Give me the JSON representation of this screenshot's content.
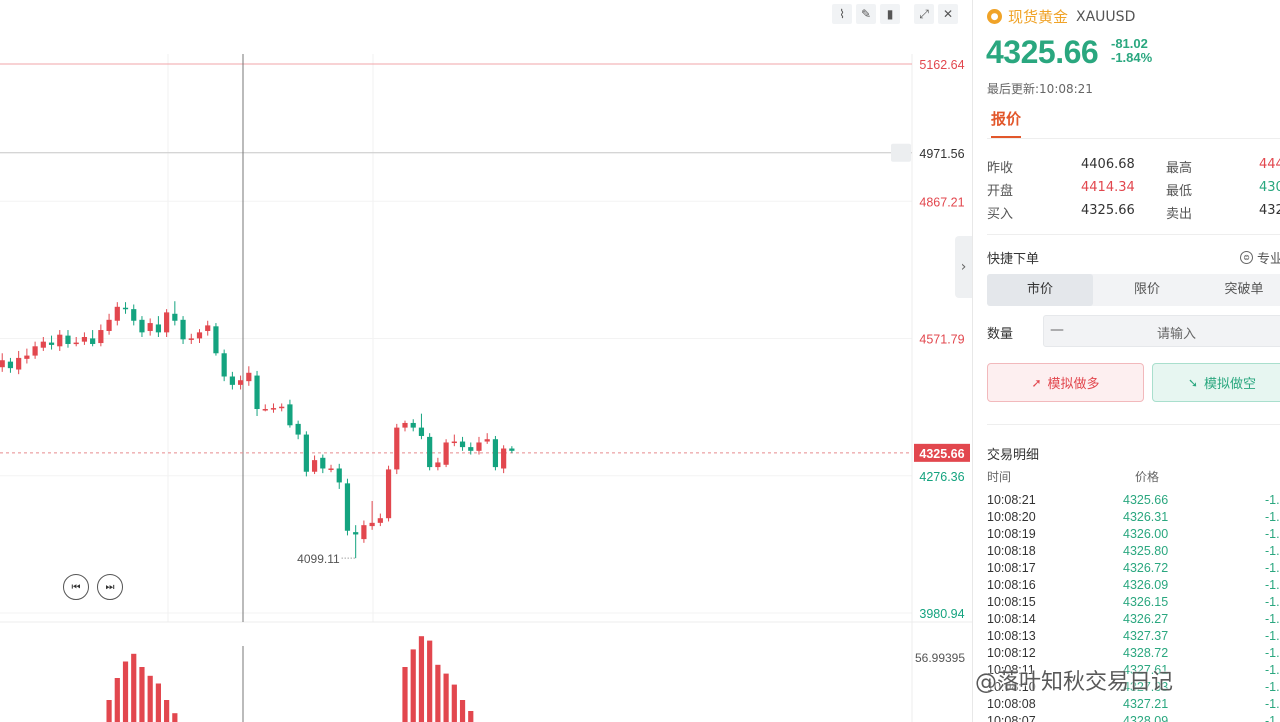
{
  "symbol": {
    "icon": "gold-coin-icon",
    "name_cn": "现货黄金",
    "code": "XAUUSD",
    "price": "4325.66",
    "change": "-81.02",
    "change_pct": "-1.84%",
    "last_update": "最后更新:10:08:21"
  },
  "tabs": {
    "quote": "报价"
  },
  "quote": {
    "left": [
      {
        "label": "昨收",
        "value": "4406.68",
        "color": "dark"
      },
      {
        "label": "开盘",
        "value": "4414.34",
        "color": "red"
      },
      {
        "label": "买入",
        "value": "4325.66",
        "color": "dark"
      }
    ],
    "right": [
      {
        "label": "最高",
        "value": "444",
        "color": "red"
      },
      {
        "label": "最低",
        "value": "430",
        "color": "green"
      },
      {
        "label": "卖出",
        "value": "432",
        "color": "dark"
      }
    ]
  },
  "quick_order": {
    "title": "快捷下单",
    "pro_label": "专业",
    "order_types": [
      "市价",
      "限价",
      "突破单"
    ],
    "active_type": "市价",
    "qty_label": "数量",
    "qty_minus": "—",
    "qty_placeholder": "请输入",
    "buy_label": "模拟做多",
    "sell_label": "模拟做空"
  },
  "trades": {
    "title": "交易明细",
    "col_time": "时间",
    "col_price": "价格",
    "rows": [
      {
        "time": "10:08:21",
        "price": "4325.66",
        "chg": "-1."
      },
      {
        "time": "10:08:20",
        "price": "4326.31",
        "chg": "-1."
      },
      {
        "time": "10:08:19",
        "price": "4326.00",
        "chg": "-1."
      },
      {
        "time": "10:08:18",
        "price": "4325.80",
        "chg": "-1."
      },
      {
        "time": "10:08:17",
        "price": "4326.72",
        "chg": "-1."
      },
      {
        "time": "10:08:16",
        "price": "4326.09",
        "chg": "-1."
      },
      {
        "time": "10:08:15",
        "price": "4326.15",
        "chg": "-1."
      },
      {
        "time": "10:08:14",
        "price": "4326.27",
        "chg": "-1."
      },
      {
        "time": "10:08:13",
        "price": "4327.37",
        "chg": "-1."
      },
      {
        "time": "10:08:12",
        "price": "4328.72",
        "chg": "-1."
      },
      {
        "time": "10:08:11",
        "price": "4327.61",
        "chg": "-1."
      },
      {
        "time": "10:08:10",
        "price": "4327.33",
        "chg": "-1."
      },
      {
        "time": "10:08:08",
        "price": "4327.21",
        "chg": "-1."
      },
      {
        "time": "10:08:07",
        "price": "4328.09",
        "chg": "-1."
      }
    ]
  },
  "watermark": "@落叶知秋交易日记",
  "chart": {
    "axis_labels": [
      {
        "value": "5162.64",
        "color": "red"
      },
      {
        "value": "4971.56",
        "color": "dark"
      },
      {
        "value": "4867.21",
        "color": "red"
      },
      {
        "value": "4571.79",
        "color": "red"
      },
      {
        "value": "4325.66",
        "color": "current"
      },
      {
        "value": "4276.36",
        "color": "green"
      },
      {
        "value": "3980.94",
        "color": "green"
      }
    ],
    "low_marker": "4099.11",
    "volume_axis_label": "56.99395",
    "colors": {
      "up": "#e2474e",
      "down": "#14a37f",
      "accent": "#e2572b"
    },
    "toolbar_icons": [
      "line-chart-icon",
      "draw-pen-icon",
      "candle-style-icon",
      "expand-icon",
      "close-icon"
    ]
  },
  "chart_data": {
    "type": "candlestick",
    "ylim": [
      3980.94,
      5162.64
    ],
    "candles": [
      [
        4520,
        4505,
        4535,
        4495
      ],
      [
        4510,
        4525,
        4540,
        4500
      ],
      [
        4522,
        4508,
        4530,
        4498
      ],
      [
        4505,
        4530,
        4545,
        4495
      ],
      [
        4528,
        4535,
        4550,
        4518
      ],
      [
        4535,
        4555,
        4565,
        4528
      ],
      [
        4552,
        4565,
        4575,
        4545
      ],
      [
        4563,
        4558,
        4578,
        4548
      ],
      [
        4555,
        4580,
        4590,
        4545
      ],
      [
        4578,
        4560,
        4590,
        4552
      ],
      [
        4560,
        4563,
        4575,
        4555
      ],
      [
        4565,
        4575,
        4585,
        4558
      ],
      [
        4572,
        4560,
        4590,
        4555
      ],
      [
        4562,
        4590,
        4602,
        4555
      ],
      [
        4588,
        4612,
        4625,
        4580
      ],
      [
        4610,
        4640,
        4650,
        4600
      ],
      [
        4638,
        4635,
        4650,
        4625
      ],
      [
        4635,
        4610,
        4645,
        4600
      ],
      [
        4612,
        4585,
        4620,
        4575
      ],
      [
        4588,
        4605,
        4615,
        4578
      ],
      [
        4602,
        4585,
        4620,
        4575
      ],
      [
        4585,
        4628,
        4635,
        4575
      ],
      [
        4625,
        4610,
        4652,
        4600
      ],
      [
        4612,
        4570,
        4620,
        4560
      ],
      [
        4570,
        4572,
        4582,
        4560
      ],
      [
        4572,
        4585,
        4592,
        4562
      ],
      [
        4588,
        4600,
        4610,
        4578
      ],
      [
        4598,
        4540,
        4605,
        4535
      ],
      [
        4540,
        4490,
        4548,
        4480
      ],
      [
        4490,
        4472,
        4500,
        4462
      ],
      [
        4472,
        4482,
        4492,
        4462
      ],
      [
        4480,
        4498,
        4512,
        4470
      ],
      [
        4492,
        4420,
        4502,
        4405
      ],
      [
        4420,
        4420,
        4430,
        4415
      ],
      [
        4420,
        4422,
        4432,
        4412
      ],
      [
        4422,
        4425,
        4432,
        4415
      ],
      [
        4430,
        4385,
        4440,
        4380
      ],
      [
        4388,
        4365,
        4395,
        4355
      ],
      [
        4365,
        4285,
        4372,
        4275
      ],
      [
        4285,
        4310,
        4320,
        4280
      ],
      [
        4315,
        4292,
        4322,
        4282
      ],
      [
        4292,
        4292,
        4300,
        4284
      ],
      [
        4292,
        4262,
        4302,
        4248
      ],
      [
        4260,
        4158,
        4270,
        4148
      ],
      [
        4155,
        4150,
        4170,
        4099
      ],
      [
        4140,
        4170,
        4180,
        4132
      ],
      [
        4168,
        4175,
        4222,
        4160
      ],
      [
        4175,
        4185,
        4195,
        4168
      ],
      [
        4185,
        4290,
        4298,
        4178
      ],
      [
        4290,
        4380,
        4388,
        4280
      ],
      [
        4380,
        4390,
        4395,
        4372
      ],
      [
        4390,
        4380,
        4398,
        4372
      ],
      [
        4380,
        4362,
        4410,
        4355
      ],
      [
        4360,
        4295,
        4368,
        4288
      ],
      [
        4295,
        4305,
        4315,
        4288
      ],
      [
        4300,
        4348,
        4355,
        4295
      ],
      [
        4348,
        4350,
        4365,
        4340
      ],
      [
        4350,
        4338,
        4360,
        4330
      ],
      [
        4338,
        4330,
        4348,
        4322
      ],
      [
        4330,
        4348,
        4360,
        4322
      ],
      [
        4350,
        4355,
        4368,
        4345
      ],
      [
        4355,
        4295,
        4362,
        4288
      ],
      [
        4292,
        4335,
        4342,
        4282
      ],
      [
        4335,
        4330,
        4340,
        4325
      ]
    ],
    "volumes": [
      0,
      0,
      0,
      0,
      0,
      0,
      0,
      0,
      0,
      0,
      0,
      0,
      0,
      0,
      20,
      40,
      55,
      62,
      50,
      42,
      35,
      20,
      8,
      0,
      0,
      0,
      0,
      0,
      0,
      0,
      0,
      0,
      0,
      0,
      0,
      0,
      0,
      0,
      0,
      0,
      0,
      0,
      0,
      0,
      0,
      0,
      0,
      0,
      0,
      0,
      50,
      66,
      78,
      74,
      52,
      44,
      34,
      20,
      10,
      0,
      0,
      0,
      0,
      0
    ]
  }
}
